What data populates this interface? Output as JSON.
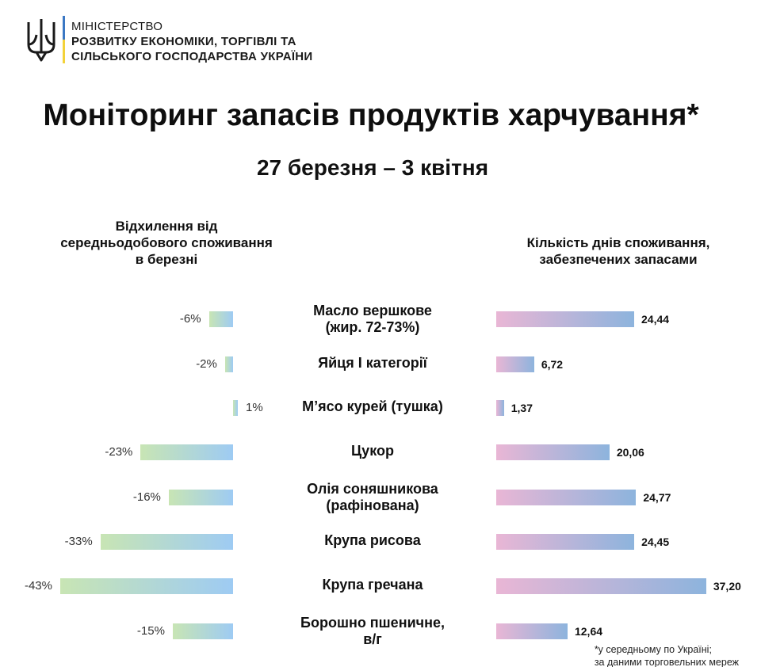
{
  "header": {
    "ministry_lines": [
      "МІНІСТЕРСТВО",
      "РОЗВИТКУ ЕКОНОМІКИ, ТОРГІВЛІ ТА",
      "СІЛЬСЬКОГО ГОСПОДАРСТВА УКРАЇНИ"
    ],
    "logo_icon": "trident-coat-of-arms-icon",
    "accent_colors": {
      "blue": "#3b78c4",
      "yellow": "#f3d23a"
    }
  },
  "chart_data": {
    "type": "bar",
    "title": "Моніторинг запасів продуктів харчування*",
    "subtitle": "27 березня – 3 квітня",
    "categories": [
      [
        "Масло вершкове",
        "(жир. 72-73%)"
      ],
      [
        "Яйця І категорії"
      ],
      [
        "М’ясо курей (тушка)"
      ],
      [
        "Цукор"
      ],
      [
        "Олія соняшникова",
        "(рафінована)"
      ],
      [
        "Крупа рисова"
      ],
      [
        "Крупа гречана"
      ],
      [
        "Борошно пшеничне,",
        "в/г"
      ]
    ],
    "series": [
      {
        "name": "Відхилення від середньодобового споживання в березні",
        "header_lines": [
          "Відхилення від",
          "середньодобового споживання",
          "в березні"
        ],
        "unit": "%",
        "values": [
          -6,
          -2,
          1,
          -23,
          -16,
          -33,
          -43,
          -15
        ],
        "labels": [
          "-6%",
          "-2%",
          "1%",
          "-23%",
          "-16%",
          "-33%",
          "-43%",
          "-15%"
        ],
        "colors": [
          "#c8e5b4",
          "#9ecbf3"
        ]
      },
      {
        "name": "Кількість днів споживання, забезпечених запасами",
        "header_lines": [
          "Кількість днів споживання,",
          "забезпечених запасами"
        ],
        "values": [
          24.44,
          6.72,
          1.37,
          20.06,
          24.77,
          24.45,
          37.2,
          12.64
        ],
        "labels": [
          "24,44",
          "6,72",
          "1,37",
          "20,06",
          "24,77",
          "24,45",
          "37,20",
          "12,64"
        ],
        "colors": [
          "#e9b6d5",
          "#8db4dd"
        ]
      }
    ],
    "footnote_lines": [
      "*у середньому по Україні;",
      "за даними торговельних мереж"
    ],
    "grid": false
  }
}
